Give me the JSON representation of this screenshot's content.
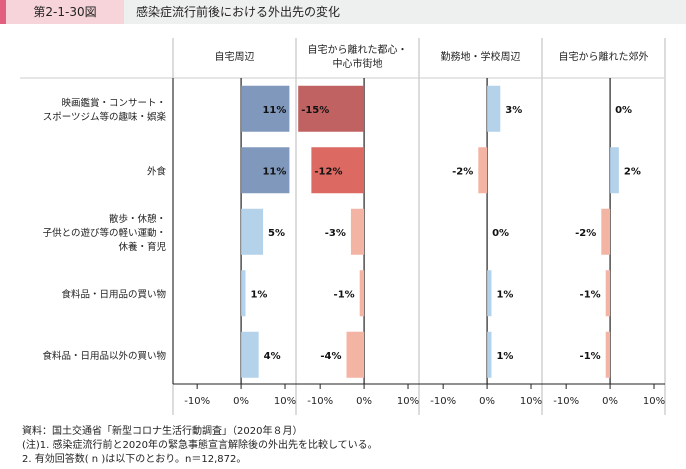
{
  "header": {
    "figure_number": "第2-1-30図",
    "title": "感染症流行前後における外出先の変化"
  },
  "chart_data": {
    "type": "bar",
    "orientation": "horizontal",
    "panels": [
      "自宅周辺",
      "自宅から離れた都心・\n中心市街地",
      "勤務地・学校周辺",
      "自宅から離れた郊外"
    ],
    "categories": [
      "映画鑑賞・コンサート・\nスポーツジム等の趣味・娯楽",
      "外食",
      "散歩・休憩・\n子供との遊び等の軽い運動・\n休養・育児",
      "食料品・日用品の買い物",
      "食料品・日用品以外の買い物"
    ],
    "values": [
      [
        11,
        -15,
        3,
        0
      ],
      [
        11,
        -12,
        -2,
        2
      ],
      [
        5,
        -3,
        0,
        -2
      ],
      [
        1,
        -1,
        1,
        -1
      ],
      [
        4,
        -4,
        1,
        -1
      ]
    ],
    "colors": [
      [
        "#8098bb",
        "#c06262",
        "#b4d2ea",
        "#f4b4a4"
      ],
      [
        "#8098bb",
        "#dc6a62",
        "#f4b4a4",
        "#b4d2ea"
      ],
      [
        "#b4d2ea",
        "#f4b4a4",
        "#b4d2ea",
        "#f4b4a4"
      ],
      [
        "#b4d2ea",
        "#f4b4a4",
        "#b4d2ea",
        "#f4b4a4"
      ],
      [
        "#b4d2ea",
        "#f4b4a4",
        "#b4d2ea",
        "#f4b4a4"
      ]
    ],
    "xticks": [
      -10,
      0,
      10
    ],
    "xtick_labels": [
      "-10%",
      "0%",
      "10%"
    ],
    "xlim": [
      -15.5,
      12.5
    ]
  },
  "notes": [
    "資料：国土交通省「新型コロナ生活行動調査」（2020年８月）",
    "(注)1.  感染症流行前と2020年の緊急事態宣言解除後の外出先を比較している。",
    "2.  有効回答数( n )は以下のとおり。n＝12,872。"
  ]
}
